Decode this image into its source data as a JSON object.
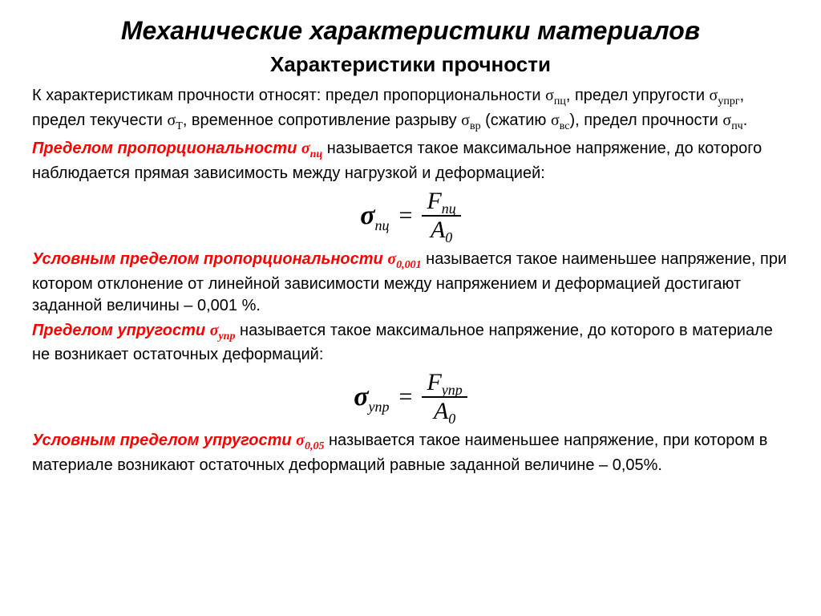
{
  "title": "Механические характеристики материалов",
  "subtitle": "Характеристики прочности",
  "intro": {
    "t1": "К характеристикам прочности относят: предел пропорциональности ",
    "s1": "σ",
    "s1sub": "пц",
    "t2": ", предел упругости ",
    "s2": "σ",
    "s2sub": "упрг",
    "t3": ", предел текучести ",
    "s3": "σ",
    "s3sub": "Т",
    "t4": ", временное сопротивление разрыву ",
    "s4": "σ",
    "s4sub": "вр",
    "t5": " (сжатию ",
    "s5": "σ",
    "s5sub": "вс",
    "t6": "), предел прочности ",
    "s6": "σ",
    "s6sub": "пч",
    "t7": "."
  },
  "def1": {
    "lead": "Пределом пропорциональности ",
    "sym": "σ",
    "sub": "пц",
    "tail": " называется такое максимальное напряжение, до которого наблюдается прямая зависимость между нагрузкой и деформацией:"
  },
  "formula1": {
    "lhs_sym": "σ",
    "lhs_sub": "пц",
    "eq": "=",
    "num_sym": "F",
    "num_sub": "пц",
    "den_sym": "A",
    "den_sub": "0"
  },
  "def2": {
    "lead": "Условным пределом пропорциональности ",
    "sym": "σ",
    "sub": "0,001",
    "tail": " называется такое наименьшее напряжение, при котором отклонение от линейной зависимости между напряжением и деформацией достигают заданной величины – 0,001 %."
  },
  "def3": {
    "lead": "Пределом упругости ",
    "sym": "σ",
    "sub": "упр",
    "tail": " называется такое максимальное напряжение, до которого в материале не возникает остаточных деформаций:"
  },
  "formula2": {
    "lhs_sym": "σ",
    "lhs_sub": "упр",
    "eq": "=",
    "num_sym": "F",
    "num_sub": "упр",
    "den_sym": "A",
    "den_sub": "0"
  },
  "def4": {
    "lead": "Условным пределом упругости ",
    "sym": "σ",
    "sub": "0,05",
    "tail": " называется такое наименьшее напряжение, при котором в материале возникают остаточных деформаций равные заданной величине – 0,05%."
  },
  "style": {
    "text_color": "#000000",
    "highlight_color": "#ff0000",
    "background": "#ffffff",
    "title_fontsize": 32,
    "subtitle_fontsize": 26,
    "body_fontsize": 20,
    "formula_fontsize": 30,
    "font_family_body": "Arial",
    "font_family_formula": "Times New Roman"
  }
}
